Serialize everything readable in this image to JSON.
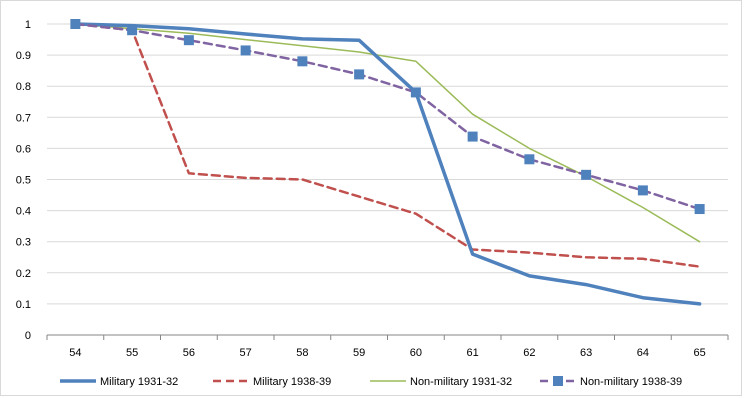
{
  "chart_data": {
    "type": "line",
    "title": "",
    "xlabel": "",
    "ylabel": "",
    "x": [
      "54",
      "55",
      "56",
      "57",
      "58",
      "59",
      "60",
      "61",
      "62",
      "63",
      "64",
      "65"
    ],
    "ylim": [
      0,
      1
    ],
    "yticks": [
      "0",
      "0.1",
      "0.2",
      "0.3",
      "0.4",
      "0.5",
      "0.6",
      "0.7",
      "0.8",
      "0.9",
      "1"
    ],
    "grid": "horizontal",
    "legend_position": "bottom",
    "series": [
      {
        "name": "Military 1931-32",
        "values": [
          1.0,
          0.995,
          0.985,
          0.968,
          0.952,
          0.948,
          0.78,
          0.26,
          0.19,
          0.162,
          0.12,
          0.1
        ],
        "color": "#4f81bd",
        "style": "solid-thick"
      },
      {
        "name": "Military 1938-39",
        "values": [
          1.0,
          0.98,
          0.52,
          0.505,
          0.5,
          0.445,
          0.39,
          0.275,
          0.265,
          0.25,
          0.245,
          0.22
        ],
        "color": "#c0504d",
        "style": "dashed"
      },
      {
        "name": "Non-military 1931-32",
        "values": [
          1.0,
          0.985,
          0.97,
          0.95,
          0.93,
          0.91,
          0.88,
          0.71,
          0.6,
          0.51,
          0.41,
          0.3
        ],
        "color": "#9bbb59",
        "style": "solid-thin"
      },
      {
        "name": "Non-military 1938-39",
        "values": [
          1.0,
          0.98,
          0.948,
          0.915,
          0.88,
          0.838,
          0.78,
          0.638,
          0.565,
          0.515,
          0.465,
          0.405
        ],
        "color": "#8064a2",
        "marker_color": "#4f81bd",
        "style": "dashed-markers"
      }
    ]
  }
}
